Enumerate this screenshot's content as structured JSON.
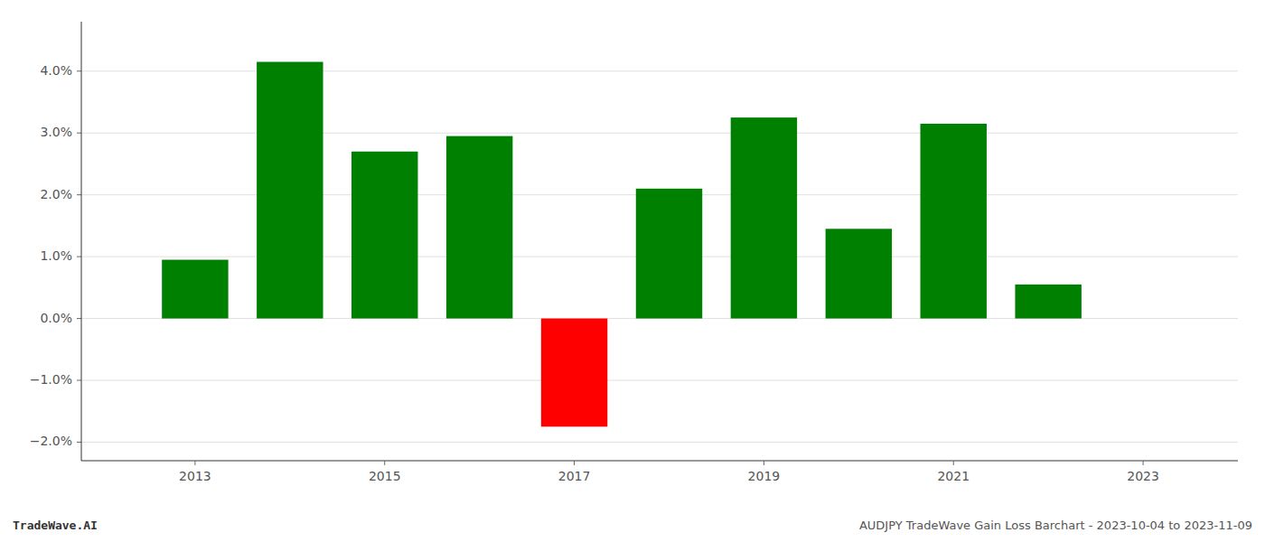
{
  "chart_data": {
    "type": "bar",
    "x": [
      2013,
      2014,
      2015,
      2016,
      2017,
      2018,
      2019,
      2020,
      2021,
      2022
    ],
    "values": [
      0.0095,
      0.0415,
      0.027,
      0.0295,
      -0.0175,
      0.021,
      0.0325,
      0.0145,
      0.0315,
      0.0055
    ],
    "colors": [
      "#008000",
      "#008000",
      "#008000",
      "#008000",
      "#ff0000",
      "#008000",
      "#008000",
      "#008000",
      "#008000",
      "#008000"
    ],
    "xlim": [
      2011.8,
      2024.0
    ],
    "xticks": [
      2013,
      2015,
      2017,
      2019,
      2021,
      2023
    ],
    "ylim": [
      -0.023,
      0.048
    ],
    "yticks": [
      {
        "value": -0.02,
        "label": "−2.0%"
      },
      {
        "value": -0.01,
        "label": "−1.0%"
      },
      {
        "value": 0.0,
        "label": "0.0%"
      },
      {
        "value": 0.01,
        "label": "1.0%"
      },
      {
        "value": 0.02,
        "label": "2.0%"
      },
      {
        "value": 0.03,
        "label": "3.0%"
      },
      {
        "value": 0.04,
        "label": "4.0%"
      }
    ],
    "grid": true,
    "annotations": [
      "TradeWave.AI",
      "AUDJPY TradeWave Gain Loss Barchart - 2023-10-04 to 2023-11-09"
    ]
  }
}
